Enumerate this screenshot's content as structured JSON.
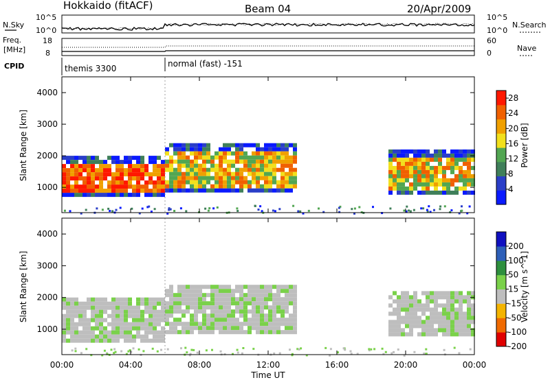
{
  "header": {
    "station": "Hokkaido (fitACF)",
    "beam": "Beam 04",
    "date": "20/Apr/2009"
  },
  "panels_top": {
    "nsky_label": "N.Sky",
    "nsky_ticks": [
      "10^5",
      "10^0"
    ],
    "nsearch_label": "N.Search",
    "nsearch_ticks": [
      "10^5",
      "10^0"
    ],
    "freq_label_1": "Freq.",
    "freq_label_2": "[MHz]",
    "freq_ticks": [
      "18",
      "8"
    ],
    "nave_label": "Nave",
    "nave_ticks": [
      "60",
      "0"
    ],
    "cpid_label": "CPID",
    "cpid_modes": [
      {
        "name": "themis 3300",
        "start": "00:00",
        "end": "06:00"
      },
      {
        "name": "normal (fast) -151",
        "start": "06:00",
        "end": "24:00"
      }
    ]
  },
  "axes": {
    "x_label": "Time UT",
    "x_ticks": [
      "00:00",
      "04:00",
      "08:00",
      "12:00",
      "16:00",
      "20:00",
      "00:00"
    ],
    "y_label": "Slant Range [km]",
    "y_ticks": [
      "1000",
      "2000",
      "3000",
      "4000"
    ]
  },
  "colors": {
    "power": [
      "#0a1aff",
      "#2a3ec8",
      "#3f7f5a",
      "#52a652",
      "#f2e01c",
      "#f0a000",
      "#f06000",
      "#ff1800"
    ],
    "velocity": [
      "#e00000",
      "#f06a00",
      "#f4b400",
      "#bebebe",
      "#7ad14a",
      "#2e8f3e",
      "#2d5fb8",
      "#1010c0"
    ]
  },
  "chart_data": [
    {
      "type": "heatmap",
      "title": "",
      "xlabel": "Time UT",
      "ylabel": "Slant Range [km]",
      "xlim_hours": [
        0,
        24
      ],
      "ylim": [
        200,
        4500
      ],
      "colorbar": {
        "label": "Power [dB]",
        "ticks": [
          "4",
          "8",
          "12",
          "16",
          "20",
          "24",
          "28"
        ],
        "range": [
          0,
          30
        ]
      },
      "regions": [
        {
          "start_h": 0,
          "end_h": 6,
          "range_min": 700,
          "range_max": 2000,
          "level": "high"
        },
        {
          "start_h": 6,
          "end_h": 13.5,
          "range_min": 900,
          "range_max": 2400,
          "level": "medium"
        },
        {
          "start_h": 19,
          "end_h": 24,
          "range_min": 800,
          "range_max": 2200,
          "level": "medium"
        }
      ]
    },
    {
      "type": "heatmap",
      "title": "",
      "xlabel": "Time UT",
      "ylabel": "Slant Range [km]",
      "xlim_hours": [
        0,
        24
      ],
      "ylim": [
        200,
        4500
      ],
      "colorbar": {
        "label": "Velocity [m s^-1]",
        "ticks": [
          "200",
          "100",
          "50",
          "15",
          "-15",
          "-50",
          "-100",
          "-200"
        ],
        "range": [
          -250,
          250
        ]
      },
      "regions": [
        {
          "start_h": 0,
          "end_h": 6,
          "range_min": 700,
          "range_max": 2000,
          "level": "low"
        },
        {
          "start_h": 6,
          "end_h": 13.5,
          "range_min": 900,
          "range_max": 2400,
          "level": "low"
        },
        {
          "start_h": 19,
          "end_h": 24,
          "range_min": 800,
          "range_max": 2200,
          "level": "low"
        }
      ]
    }
  ]
}
